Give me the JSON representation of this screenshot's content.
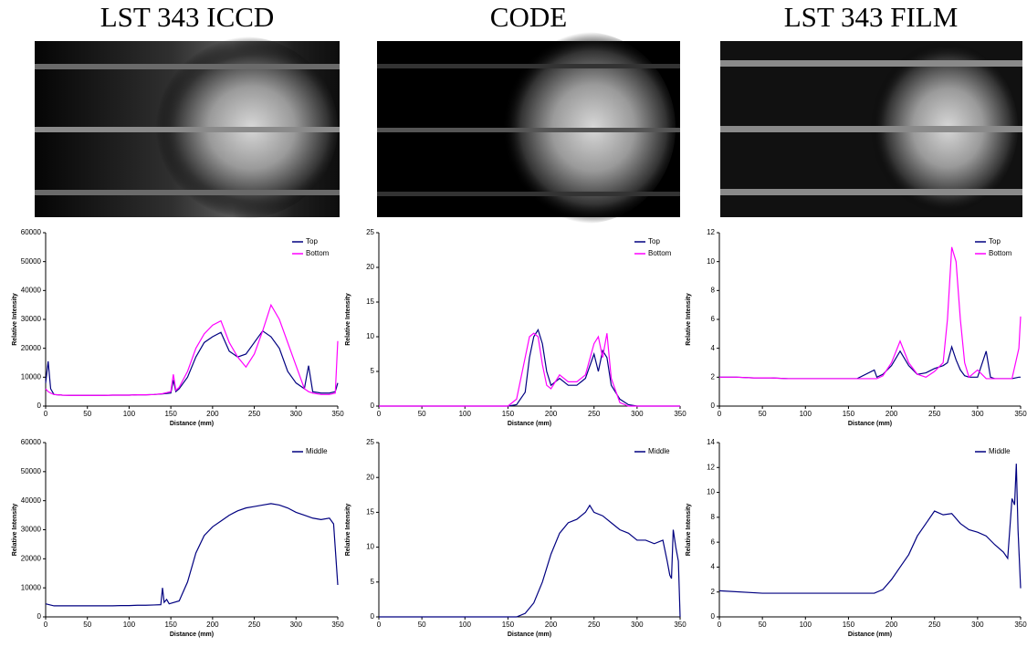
{
  "column_titles": [
    "LST 343 ICCD",
    "CODE",
    "LST 343 FILM"
  ],
  "chart_data": [
    {
      "type": "line",
      "xlabel": "Distance (mm)",
      "ylabel": "Relative Intensity",
      "legend": "upper right",
      "xlim": [
        0,
        350
      ],
      "xticks": [
        0,
        50,
        100,
        150,
        200,
        250,
        300,
        350
      ],
      "ylim": [
        0,
        60000
      ],
      "yticks": [
        0,
        10000,
        20000,
        30000,
        40000,
        50000,
        60000
      ],
      "x": [
        0,
        3,
        6,
        10,
        20,
        30,
        40,
        50,
        60,
        70,
        80,
        90,
        100,
        110,
        120,
        130,
        140,
        150,
        153,
        156,
        160,
        170,
        180,
        190,
        200,
        210,
        220,
        230,
        240,
        250,
        260,
        270,
        280,
        290,
        300,
        310,
        315,
        320,
        330,
        340,
        347,
        350
      ],
      "series": [
        {
          "name": "Top",
          "color": "#000080",
          "values": [
            8000,
            15500,
            6000,
            4000,
            3800,
            3700,
            3700,
            3700,
            3700,
            3700,
            3800,
            3800,
            3800,
            3900,
            3900,
            4000,
            4200,
            4500,
            9000,
            5000,
            6000,
            10000,
            17000,
            22000,
            24000,
            25500,
            19000,
            17000,
            18000,
            22000,
            26000,
            24000,
            20000,
            12000,
            8000,
            6000,
            14000,
            5000,
            4500,
            4500,
            5000,
            8000
          ]
        },
        {
          "name": "Bottom",
          "color": "#ff00ff",
          "values": [
            6000,
            5000,
            4500,
            4000,
            3800,
            3700,
            3700,
            3700,
            3700,
            3700,
            3800,
            3800,
            3800,
            3900,
            3900,
            4000,
            4300,
            5000,
            11000,
            5500,
            6500,
            12000,
            20000,
            25000,
            28000,
            29500,
            22000,
            17000,
            13500,
            18000,
            26000,
            35000,
            30000,
            22000,
            14000,
            6000,
            5000,
            4500,
            4000,
            4000,
            4500,
            22500
          ]
        }
      ]
    },
    {
      "type": "line",
      "xlabel": "Distance (mm)",
      "ylabel": "Relative Intensity",
      "legend": "upper right",
      "xlim": [
        0,
        350
      ],
      "xticks": [
        0,
        50,
        100,
        150,
        200,
        250,
        300,
        350
      ],
      "ylim": [
        0,
        25
      ],
      "yticks": [
        0,
        5,
        10,
        15,
        20,
        25
      ],
      "x": [
        0,
        50,
        100,
        150,
        160,
        170,
        175,
        180,
        185,
        190,
        195,
        200,
        210,
        220,
        230,
        240,
        250,
        255,
        260,
        265,
        270,
        280,
        290,
        300,
        350
      ],
      "series": [
        {
          "name": "Top",
          "color": "#000080",
          "values": [
            0,
            0,
            0,
            0,
            0.2,
            2,
            7,
            10,
            11,
            9,
            5,
            3,
            4,
            3,
            3,
            4,
            7.5,
            5,
            8,
            7,
            3,
            1,
            0.2,
            0,
            0
          ]
        },
        {
          "name": "Bottom",
          "color": "#ff00ff",
          "values": [
            0,
            0,
            0,
            0,
            1,
            7,
            10,
            10.5,
            10,
            6,
            3,
            2.5,
            4.5,
            3.5,
            3.5,
            4.5,
            9,
            10,
            7,
            10.5,
            4,
            0.5,
            0,
            0,
            0
          ]
        }
      ]
    },
    {
      "type": "line",
      "xlabel": "Distance (mm)",
      "ylabel": "Relative Intensity",
      "legend": "upper right",
      "xlim": [
        0,
        350
      ],
      "xticks": [
        0,
        50,
        100,
        150,
        200,
        250,
        300,
        350
      ],
      "ylim": [
        0,
        12
      ],
      "yticks": [
        0,
        2,
        4,
        6,
        8,
        10,
        12
      ],
      "x": [
        0,
        20,
        40,
        60,
        80,
        100,
        120,
        140,
        160,
        180,
        183,
        190,
        200,
        210,
        220,
        230,
        240,
        250,
        260,
        265,
        270,
        275,
        280,
        285,
        290,
        300,
        310,
        315,
        320,
        330,
        340,
        348,
        350
      ],
      "series": [
        {
          "name": "Top",
          "color": "#000080",
          "values": [
            2.0,
            2.0,
            1.95,
            1.95,
            1.9,
            1.9,
            1.9,
            1.9,
            1.9,
            2.5,
            2.0,
            2.2,
            2.8,
            3.8,
            2.8,
            2.2,
            2.3,
            2.6,
            2.8,
            3.0,
            4.1,
            3.2,
            2.5,
            2.1,
            2.0,
            2.0,
            3.8,
            2.0,
            1.9,
            1.9,
            1.9,
            2.0,
            2.0
          ]
        },
        {
          "name": "Bottom",
          "color": "#ff00ff",
          "values": [
            2.0,
            2.0,
            1.95,
            1.95,
            1.9,
            1.9,
            1.9,
            1.9,
            1.9,
            1.9,
            1.9,
            2.1,
            3.0,
            4.5,
            3.0,
            2.2,
            2.0,
            2.4,
            3.0,
            6.0,
            11.0,
            10.0,
            6.0,
            3.0,
            2.0,
            2.5,
            1.9,
            1.9,
            1.9,
            1.9,
            1.9,
            4.0,
            6.2
          ]
        }
      ]
    },
    {
      "type": "line",
      "xlabel": "Distance (mm)",
      "ylabel": "Relative Intensity",
      "legend": "upper right",
      "xlim": [
        0,
        350
      ],
      "xticks": [
        0,
        50,
        100,
        150,
        200,
        250,
        300,
        350
      ],
      "ylim": [
        0,
        60000
      ],
      "yticks": [
        0,
        10000,
        20000,
        30000,
        40000,
        50000,
        60000
      ],
      "x": [
        0,
        10,
        20,
        30,
        40,
        50,
        60,
        70,
        80,
        90,
        100,
        110,
        120,
        130,
        138,
        140,
        142,
        145,
        148,
        160,
        170,
        180,
        190,
        200,
        210,
        220,
        230,
        240,
        250,
        260,
        270,
        280,
        290,
        300,
        310,
        320,
        330,
        340,
        345,
        350
      ],
      "series": [
        {
          "name": "Middle",
          "color": "#000080",
          "values": [
            4500,
            3800,
            3800,
            3800,
            3800,
            3800,
            3800,
            3800,
            3800,
            3900,
            3900,
            4000,
            4000,
            4100,
            4200,
            10000,
            5000,
            6000,
            4500,
            5500,
            12000,
            22000,
            28000,
            31000,
            33000,
            35000,
            36500,
            37500,
            38000,
            38500,
            39000,
            38500,
            37500,
            36000,
            35000,
            34000,
            33500,
            34000,
            32000,
            11000
          ]
        }
      ]
    },
    {
      "type": "line",
      "xlabel": "Distance (mm)",
      "ylabel": "Relative Intensity",
      "legend": "upper right",
      "xlim": [
        0,
        350
      ],
      "xticks": [
        0,
        50,
        100,
        150,
        200,
        250,
        300,
        350
      ],
      "ylim": [
        0,
        25
      ],
      "yticks": [
        0,
        5,
        10,
        15,
        20,
        25
      ],
      "x": [
        0,
        50,
        100,
        150,
        160,
        170,
        180,
        190,
        200,
        210,
        220,
        230,
        240,
        245,
        250,
        260,
        270,
        280,
        290,
        300,
        310,
        320,
        330,
        335,
        338,
        340,
        342,
        345,
        348,
        350
      ],
      "series": [
        {
          "name": "Middle",
          "color": "#000080",
          "values": [
            0,
            0,
            0,
            0,
            0,
            0.5,
            2,
            5,
            9,
            12,
            13.5,
            14,
            15,
            16,
            15,
            14.5,
            13.5,
            12.5,
            12,
            11,
            11,
            10.5,
            11,
            8,
            6,
            5.5,
            12.5,
            10,
            8,
            0
          ]
        }
      ]
    },
    {
      "type": "line",
      "xlabel": "Distance (mm)",
      "ylabel": "Relative Intensity",
      "legend": "upper right",
      "xlim": [
        0,
        350
      ],
      "xticks": [
        0,
        50,
        100,
        150,
        200,
        250,
        300,
        350
      ],
      "ylim": [
        0,
        14
      ],
      "yticks": [
        0,
        2,
        4,
        6,
        8,
        10,
        12,
        14
      ],
      "x": [
        0,
        50,
        100,
        150,
        180,
        190,
        200,
        210,
        220,
        230,
        240,
        250,
        260,
        270,
        280,
        290,
        300,
        310,
        320,
        330,
        335,
        340,
        343,
        345,
        347,
        350
      ],
      "series": [
        {
          "name": "Middle",
          "color": "#000080",
          "values": [
            2.1,
            1.9,
            1.9,
            1.9,
            1.9,
            2.2,
            3,
            4,
            5,
            6.5,
            7.5,
            8.5,
            8.2,
            8.3,
            7.5,
            7,
            6.8,
            6.5,
            5.8,
            5.2,
            4.7,
            9.5,
            9,
            12.3,
            7,
            2.3
          ]
        }
      ]
    }
  ]
}
